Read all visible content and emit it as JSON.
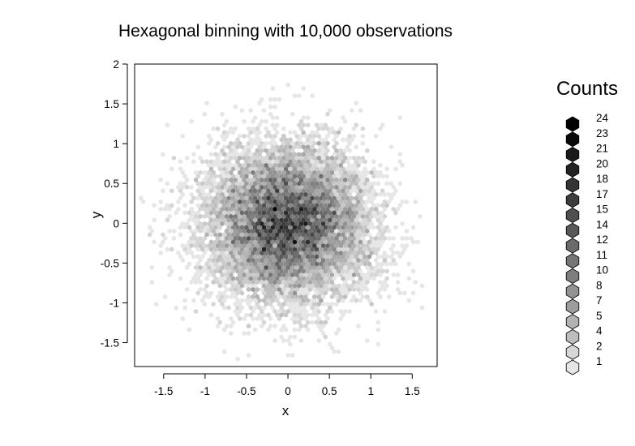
{
  "chart_data": {
    "type": "heatmap",
    "subtype": "hexbin",
    "title": "Hexagonal binning with 10,000 observations",
    "xlabel": "x",
    "ylabel": "y",
    "xlim": [
      -1.85,
      1.8
    ],
    "ylim": [
      -1.8,
      2.0
    ],
    "x_ticks": [
      -1.5,
      -1,
      -0.5,
      0,
      0.5,
      1,
      1.5
    ],
    "x_tick_labels": [
      "-1.5",
      "-1",
      "-0.5",
      "0",
      "0.5",
      "1",
      "1.5"
    ],
    "y_ticks": [
      -1.5,
      -1,
      -0.5,
      0,
      0.5,
      1,
      1.5,
      2
    ],
    "y_tick_labels": [
      "-1.5",
      "-1",
      "-0.5",
      "0",
      "0.5",
      "1",
      "1.5",
      "2"
    ],
    "grid": false,
    "legend": {
      "title": "Counts",
      "position": "right",
      "counts": [
        24,
        23,
        21,
        20,
        18,
        17,
        15,
        14,
        12,
        11,
        10,
        8,
        7,
        5,
        4,
        2,
        1
      ],
      "labels": [
        "24",
        "23",
        "21",
        "20",
        "18",
        "17",
        "15",
        "14",
        "12",
        "11",
        "10",
        "8",
        "7",
        "5",
        "4",
        "2",
        "1"
      ]
    },
    "color_low": "#e6e6e6",
    "color_high": "#000000",
    "max_count": 24,
    "distribution": {
      "center": [
        0.0,
        0.0
      ],
      "sd": [
        0.5,
        0.5
      ],
      "n_observations": 10000,
      "hex_width": 0.053
    }
  }
}
